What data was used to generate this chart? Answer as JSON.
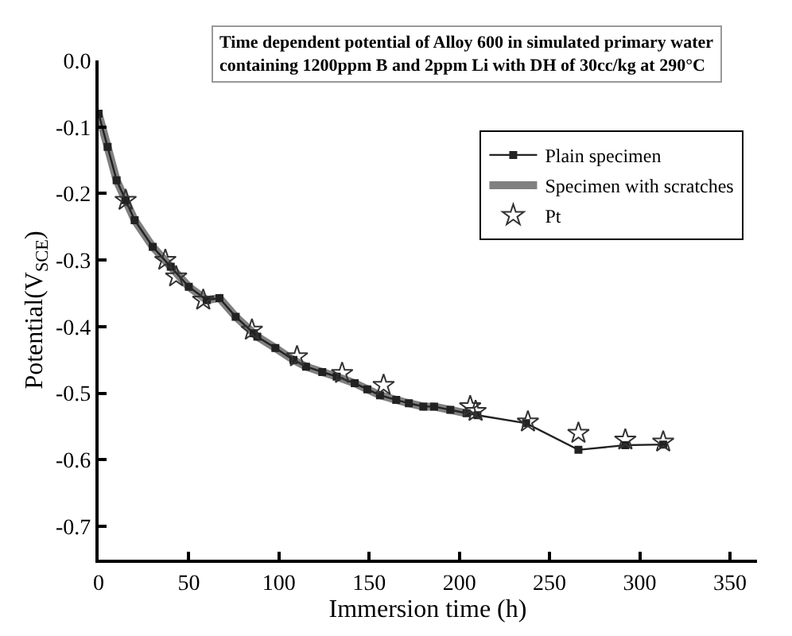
{
  "chart_data": {
    "type": "line",
    "title": "Time dependent potential of Alloy 600 in simulated primary water\ncontaining 1200ppm B and 2ppm Li with DH of 30cc/kg at 290°C",
    "xlabel": "Immersion time (h)",
    "ylabel": "Potential(V$_{SCE}$)",
    "xlim": [
      0,
      365
    ],
    "ylim": [
      -0.75,
      0.0
    ],
    "xticks": [
      0,
      50,
      100,
      150,
      200,
      250,
      300,
      350
    ],
    "yticks": [
      {
        "value": 0.0,
        "label": "0.0"
      },
      -0.1,
      -0.2,
      -0.3,
      -0.4,
      -0.5,
      -0.6,
      -0.7
    ],
    "legend": "top right",
    "series": [
      {
        "name": "Specimen with scratches",
        "color": "#808080",
        "marker": "circle",
        "line_style": "solid",
        "x": [
          0,
          5,
          10,
          15,
          20,
          30,
          40,
          50,
          60,
          67,
          76,
          86,
          88,
          98,
          108,
          115,
          124,
          132,
          142,
          149,
          156,
          165,
          172,
          180,
          186,
          195,
          204
        ],
        "values": [
          -0.08,
          -0.13,
          -0.18,
          -0.21,
          -0.24,
          -0.28,
          -0.31,
          -0.34,
          -0.36,
          -0.357,
          -0.385,
          -0.41,
          -0.415,
          -0.432,
          -0.45,
          -0.46,
          -0.468,
          -0.475,
          -0.485,
          -0.494,
          -0.503,
          -0.51,
          -0.515,
          -0.52,
          -0.52,
          -0.525,
          -0.53
        ]
      },
      {
        "name": "Plain specimen",
        "color": "#222222",
        "marker": "square",
        "line_style": "solid",
        "x": [
          0,
          5,
          10,
          15,
          20,
          30,
          40,
          50,
          60,
          67,
          76,
          86,
          88,
          98,
          108,
          115,
          124,
          132,
          142,
          149,
          156,
          165,
          172,
          180,
          186,
          195,
          204,
          210,
          237,
          266,
          292,
          313
        ],
        "values": [
          -0.08,
          -0.13,
          -0.18,
          -0.21,
          -0.24,
          -0.28,
          -0.31,
          -0.34,
          -0.36,
          -0.357,
          -0.385,
          -0.41,
          -0.415,
          -0.432,
          -0.45,
          -0.46,
          -0.468,
          -0.475,
          -0.485,
          -0.494,
          -0.503,
          -0.51,
          -0.515,
          -0.52,
          -0.52,
          -0.525,
          -0.53,
          -0.533,
          -0.545,
          -0.585,
          -0.578,
          -0.577
        ]
      },
      {
        "name": "Pt",
        "type": "scatter",
        "color": "#333333",
        "marker": "star",
        "x": [
          15,
          37,
          43,
          58,
          85,
          110,
          135,
          158,
          206,
          209,
          238,
          266,
          292,
          313
        ],
        "values": [
          -0.21,
          -0.3,
          -0.325,
          -0.36,
          -0.405,
          -0.445,
          -0.47,
          -0.488,
          -0.52,
          -0.527,
          -0.543,
          -0.56,
          -0.57,
          -0.573
        ]
      }
    ]
  }
}
